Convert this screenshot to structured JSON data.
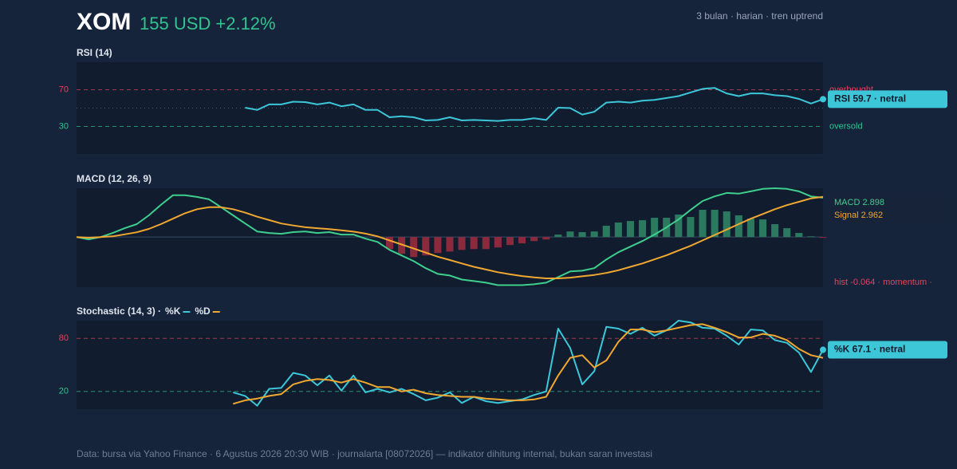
{
  "header": {
    "symbol": "XOM",
    "price": "155 USD +2.12%",
    "meta": "3 bulan · harian · tren uptrend"
  },
  "footer": "Data: bursa via Yahoo Finance · 6 Agustus 2026 20:30 WIB · journalarta [08072026] — indikator dihitung internal, bukan saran investasi",
  "chart_data": [
    {
      "type": "line",
      "title": "RSI (14)",
      "ylim": [
        0,
        100
      ],
      "yticks": [
        30,
        70
      ],
      "tick_colors": [
        "#34c38f",
        "#e0455d"
      ],
      "tick_notes": [
        "oversold",
        "overbought"
      ],
      "midline": 50,
      "badge": "RSI 59.7 · netral",
      "series": [
        {
          "color": "#3cc6d8",
          "type": "line",
          "values": [
            null,
            null,
            null,
            null,
            null,
            null,
            null,
            null,
            null,
            null,
            null,
            null,
            null,
            null,
            50.4,
            48,
            54,
            54,
            57,
            56.5,
            54,
            56,
            52,
            54,
            48,
            48,
            40,
            41,
            40,
            36.5,
            37,
            40,
            36.5,
            37,
            36.5,
            36,
            37,
            37,
            39,
            37,
            50.4,
            50,
            43,
            46,
            56,
            57,
            56,
            58,
            59,
            61,
            63,
            67,
            71,
            72,
            66,
            63,
            66,
            66,
            64,
            63,
            60,
            55,
            59.7
          ]
        }
      ]
    },
    {
      "type": "line",
      "title": "MACD (12, 26, 9)",
      "ylim": [
        -3.7,
        3.6
      ],
      "zero_line": true,
      "notes": [
        "MACD 2.898",
        "Signal 2.962",
        "hist -0.064 · momentum ·"
      ],
      "series": [
        {
          "name": "hist",
          "type": "bar",
          "color": "#2b7a5f",
          "negative_color": "#8b2a3c",
          "values": [
            null,
            null,
            null,
            null,
            null,
            null,
            null,
            null,
            null,
            null,
            null,
            null,
            null,
            null,
            null,
            null,
            null,
            null,
            null,
            null,
            null,
            null,
            null,
            null,
            null,
            null,
            -0.89,
            -1.24,
            -1.48,
            -1.36,
            -1.18,
            -1.07,
            -0.95,
            -0.89,
            -0.89,
            -0.77,
            -0.59,
            -0.47,
            -0.3,
            -0.18,
            0.18,
            0.41,
            0.36,
            0.41,
            0.83,
            1.07,
            1.18,
            1.24,
            1.42,
            1.42,
            1.66,
            1.48,
            2.01,
            2.01,
            1.89,
            1.6,
            1.36,
            1.3,
            0.95,
            0.65,
            0.3,
            0.05,
            -0.064
          ]
        },
        {
          "name": "MACD",
          "type": "line",
          "color": "#3ecf8e",
          "values": [
            0,
            -0.18,
            0,
            0.3,
            0.65,
            0.95,
            1.6,
            2.37,
            3.08,
            3.08,
            2.96,
            2.78,
            2.2,
            1.6,
            1.0,
            0.41,
            0.3,
            0.24,
            0.36,
            0.41,
            0.3,
            0.36,
            0.18,
            0.18,
            -0.12,
            -0.36,
            -0.95,
            -1.36,
            -1.78,
            -2.3,
            -2.72,
            -2.84,
            -3.14,
            -3.25,
            -3.37,
            -3.55,
            -3.55,
            -3.55,
            -3.49,
            -3.37,
            -2.96,
            -2.54,
            -2.49,
            -2.3,
            -1.66,
            -1.12,
            -0.71,
            -0.3,
            0.18,
            0.71,
            1.3,
            2.0,
            2.66,
            3.0,
            3.25,
            3.2,
            3.37,
            3.55,
            3.6,
            3.55,
            3.37,
            3.0,
            2.898
          ]
        },
        {
          "name": "Signal",
          "type": "line",
          "color": "#f0a830",
          "values": [
            0,
            -0.05,
            0,
            0.05,
            0.2,
            0.35,
            0.6,
            0.95,
            1.35,
            1.75,
            2.05,
            2.2,
            2.2,
            2.05,
            1.8,
            1.5,
            1.25,
            1.0,
            0.85,
            0.72,
            0.65,
            0.58,
            0.5,
            0.4,
            0.25,
            0.05,
            -0.25,
            -0.55,
            -0.85,
            -1.15,
            -1.45,
            -1.7,
            -1.95,
            -2.2,
            -2.4,
            -2.6,
            -2.75,
            -2.88,
            -2.98,
            -3.05,
            -3.05,
            -3.0,
            -2.9,
            -2.8,
            -2.65,
            -2.45,
            -2.2,
            -1.95,
            -1.65,
            -1.35,
            -1.0,
            -0.65,
            -0.25,
            0.15,
            0.55,
            0.95,
            1.35,
            1.7,
            2.05,
            2.35,
            2.6,
            2.85,
            2.962
          ]
        }
      ]
    },
    {
      "type": "line",
      "title": "Stochastic (14, 3) ·",
      "ylim": [
        0,
        100
      ],
      "yticks": [
        20,
        80
      ],
      "tick_colors": [
        "#34c38f",
        "#e0455d"
      ],
      "badge": "%K 67.1 · netral",
      "legend": true,
      "series": [
        {
          "name": "%K",
          "type": "line",
          "color": "#3cc6d8",
          "values": [
            null,
            null,
            null,
            null,
            null,
            null,
            null,
            null,
            null,
            null,
            null,
            null,
            null,
            19,
            15,
            4,
            23,
            24,
            41,
            38,
            27,
            38,
            21,
            38,
            19,
            23,
            19,
            23,
            17,
            10,
            13,
            19,
            7,
            14,
            9,
            7,
            9,
            11,
            16,
            20,
            91,
            69,
            28,
            43,
            93,
            91,
            85,
            92,
            83,
            89,
            100,
            98,
            92,
            91,
            83,
            73,
            90,
            89,
            78,
            75,
            64,
            42,
            67.1
          ]
        },
        {
          "name": "%D",
          "type": "line",
          "color": "#f0a830",
          "values": [
            null,
            null,
            null,
            null,
            null,
            null,
            null,
            null,
            null,
            null,
            null,
            null,
            null,
            6,
            10,
            12,
            15,
            17,
            28,
            32,
            34,
            33,
            30,
            34,
            30,
            25,
            25,
            20,
            22,
            18,
            16,
            15,
            14,
            14,
            12,
            11,
            10,
            10,
            11,
            14,
            38,
            58,
            61,
            47,
            55,
            76,
            90,
            90,
            87,
            89,
            92,
            95,
            96,
            92,
            87,
            81,
            81,
            85,
            83,
            78,
            68,
            61,
            58
          ]
        }
      ]
    }
  ]
}
